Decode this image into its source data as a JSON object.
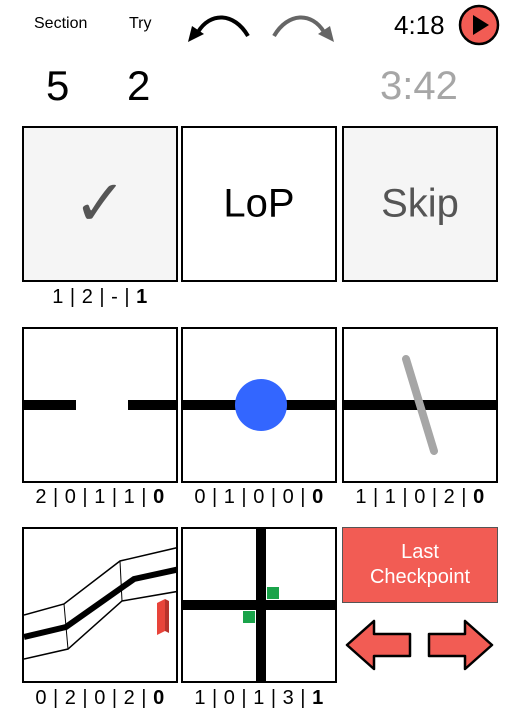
{
  "header": {
    "section_label": "Section",
    "try_label": "Try",
    "section_value": "5",
    "try_value": "2",
    "clock": "4:18",
    "timer": "3:42",
    "undo_icon": "undo-arrow-icon",
    "redo_icon": "redo-arrow-icon",
    "play_icon": "play-icon"
  },
  "actions": {
    "check_glyph": "✓",
    "lop_label": "LoP",
    "skip_label": "Skip",
    "check_score": [
      "1",
      "2",
      "-"
    ],
    "check_score_total": "1"
  },
  "tiles": [
    {
      "name": "gap",
      "score": [
        "2",
        "0",
        "1",
        "1"
      ],
      "total": "0"
    },
    {
      "name": "obstacle-dot",
      "score": [
        "0",
        "1",
        "0",
        "0"
      ],
      "total": "0"
    },
    {
      "name": "ramp-line",
      "score": [
        "1",
        "1",
        "0",
        "2"
      ],
      "total": "0"
    },
    {
      "name": "seesaw",
      "score": [
        "0",
        "2",
        "0",
        "2"
      ],
      "total": "0"
    },
    {
      "name": "intersection",
      "score": [
        "1",
        "0",
        "1",
        "3"
      ],
      "total": "1"
    }
  ],
  "checkpoint": {
    "line1": "Last",
    "line2": "Checkpoint"
  },
  "nav": {
    "left_icon": "arrow-left-icon",
    "right_icon": "arrow-right-icon"
  },
  "colors": {
    "accent_red": "#f25c54",
    "dot_blue": "#3366ff",
    "marker_green": "#1aa34a",
    "bar_grey": "#a6a6a6"
  }
}
